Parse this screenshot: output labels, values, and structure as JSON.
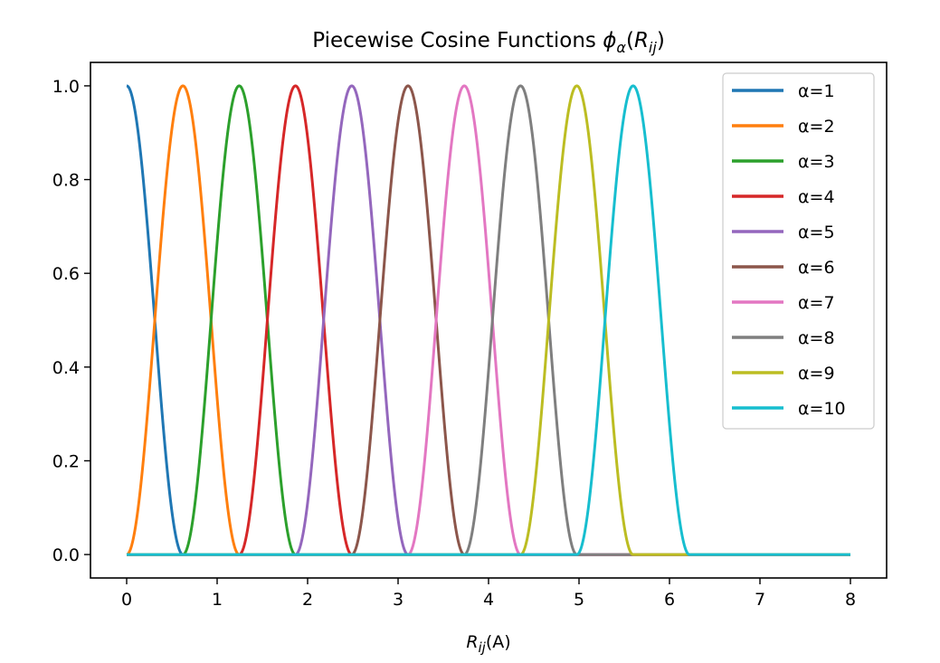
{
  "chart_data": {
    "type": "line",
    "title": "Piecewise Cosine Functions ϕα(Rij)",
    "title_main": "Piecewise Cosine Functions ",
    "title_phi": "ϕ",
    "title_alpha_sub": "α",
    "title_open": "(",
    "title_R": "R",
    "title_ij_sub": "ij",
    "title_close": ")",
    "xlabel": "Rij(A)",
    "xlabel_R": "R",
    "xlabel_ij_sub": "ij",
    "xlabel_unit": "(A)",
    "ylabel": "",
    "xlim": [
      -0.4,
      8.4
    ],
    "ylim": [
      -0.05,
      1.05
    ],
    "xticks": [
      0,
      1,
      2,
      3,
      4,
      5,
      6,
      7,
      8
    ],
    "xtick_labels": [
      "0",
      "1",
      "2",
      "3",
      "4",
      "5",
      "6",
      "7",
      "8"
    ],
    "yticks": [
      0.0,
      0.2,
      0.4,
      0.6,
      0.8,
      1.0
    ],
    "ytick_labels": [
      "0.0",
      "0.2",
      "0.4",
      "0.6",
      "0.8",
      "1.0"
    ],
    "grid": false,
    "legend_position": "top-right",
    "x_range": [
      0,
      8
    ],
    "center_spacing": 0.622,
    "series": [
      {
        "name": "α=1",
        "center": 0.0,
        "color": "#1f77b4"
      },
      {
        "name": "α=2",
        "center": 0.622,
        "color": "#ff7f0e"
      },
      {
        "name": "α=3",
        "center": 1.244,
        "color": "#2ca02c"
      },
      {
        "name": "α=4",
        "center": 1.866,
        "color": "#d62728"
      },
      {
        "name": "α=5",
        "center": 2.488,
        "color": "#9467bd"
      },
      {
        "name": "α=6",
        "center": 3.11,
        "color": "#8c564b"
      },
      {
        "name": "α=7",
        "center": 3.732,
        "color": "#e377c2"
      },
      {
        "name": "α=8",
        "center": 4.354,
        "color": "#7f7f7f"
      },
      {
        "name": "α=9",
        "center": 4.976,
        "color": "#bcbd22"
      },
      {
        "name": "α=10",
        "center": 5.598,
        "color": "#17becf"
      }
    ]
  }
}
